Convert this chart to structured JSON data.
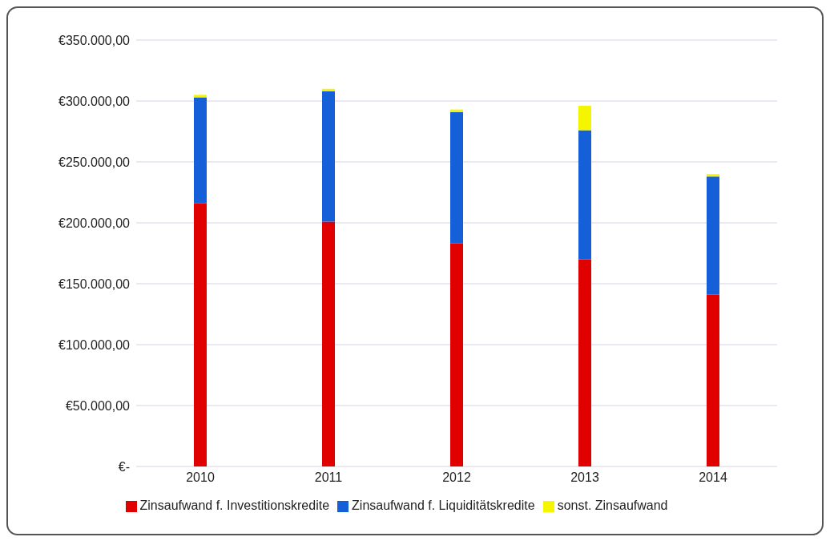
{
  "chart_data": {
    "type": "bar",
    "stacked": true,
    "categories": [
      "2010",
      "2011",
      "2012",
      "2013",
      "2014"
    ],
    "series": [
      {
        "name": "Zinsaufwand f. Investitionskredite",
        "color": "#e00000",
        "values": [
          216000,
          201000,
          183000,
          170000,
          141000
        ]
      },
      {
        "name": "Zinsaufwand f. Liquiditätskredite",
        "color": "#1560d8",
        "values": [
          87000,
          107000,
          108000,
          106000,
          97000
        ]
      },
      {
        "name": "sonst. Zinsaufwand",
        "color": "#f5f500",
        "values": [
          2000,
          2000,
          2000,
          20000,
          2000
        ]
      }
    ],
    "ylim": [
      0,
      350000
    ],
    "yticks": [
      {
        "value": 0,
        "label": "€-"
      },
      {
        "value": 50000,
        "label": "€50.000,00"
      },
      {
        "value": 100000,
        "label": "€100.000,00"
      },
      {
        "value": 150000,
        "label": "€150.000,00"
      },
      {
        "value": 200000,
        "label": "€200.000,00"
      },
      {
        "value": 250000,
        "label": "€250.000,00"
      },
      {
        "value": 300000,
        "label": "€300.000,00"
      },
      {
        "value": 350000,
        "label": "€350.000,00"
      }
    ],
    "grid": "y",
    "legend": "bottom"
  }
}
